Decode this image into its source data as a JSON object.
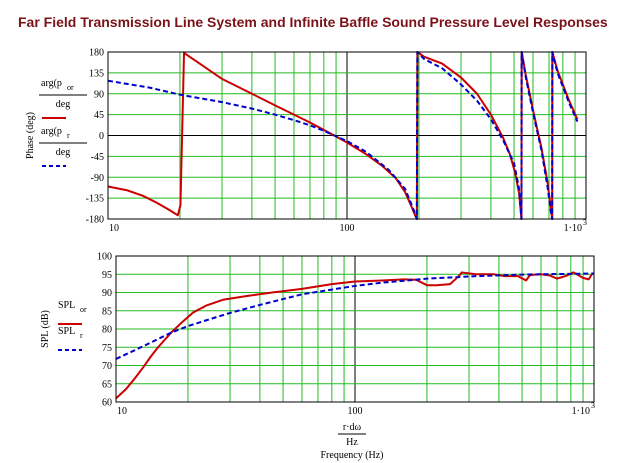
{
  "title": "Far Field Transmission Line System and Infinite Baffle Sound Pressure Level Responses",
  "chart_data": [
    {
      "type": "line",
      "xscale": "log",
      "xlim": [
        10,
        1000
      ],
      "ylim": [
        -180,
        180
      ],
      "grid": true,
      "x_ticks": [
        "10",
        "100",
        "1·10"
      ],
      "x_tick_exp": "3",
      "y_ticks": [
        "180",
        "135",
        "90",
        "45",
        "0",
        "-45",
        "-90",
        "-135",
        "-180"
      ],
      "y_tick_values": [
        180,
        135,
        90,
        45,
        0,
        -45,
        -90,
        -135,
        -180
      ],
      "ylabel": "Phase (deg)",
      "legend": [
        {
          "expr": "arg(p",
          "sub": "or",
          "den": "deg",
          "color": "#cc0000",
          "dash": "solid"
        },
        {
          "expr": "arg(p",
          "sub": "r",
          "den": "deg",
          "color": "#0000cc",
          "dash": "dashed"
        }
      ],
      "series": [
        {
          "color": "#cc0000",
          "dash": "solid",
          "points": [
            [
              10,
              -110
            ],
            [
              12,
              -118
            ],
            [
              14,
              -130
            ],
            [
              16,
              -145
            ],
            [
              18,
              -160
            ],
            [
              19.6,
              -172
            ],
            [
              20.1,
              -150
            ],
            [
              20.8,
              178
            ],
            [
              25,
              150
            ],
            [
              30,
              122
            ],
            [
              40,
              90
            ],
            [
              50,
              65
            ],
            [
              60,
              45
            ],
            [
              70,
              28
            ],
            [
              80,
              12
            ],
            [
              100,
              -15
            ],
            [
              120,
              -40
            ],
            [
              140,
              -65
            ],
            [
              160,
              -92
            ],
            [
              175,
              -122
            ],
            [
              185,
              -150
            ],
            [
              192,
              -170
            ],
            [
              196,
              -180
            ],
            [
              197,
              180
            ],
            [
              210,
              170
            ],
            [
              250,
              155
            ],
            [
              300,
              125
            ],
            [
              350,
              90
            ],
            [
              400,
              45
            ],
            [
              450,
              -5
            ],
            [
              480,
              -40
            ],
            [
              505,
              -80
            ],
            [
              525,
              -125
            ],
            [
              537,
              -180
            ],
            [
              538,
              180
            ],
            [
              560,
              130
            ],
            [
              600,
              55
            ],
            [
              650,
              -25
            ],
            [
              690,
              -100
            ],
            [
              710,
              -150
            ],
            [
              722,
              -180
            ],
            [
              723,
              180
            ],
            [
              760,
              140
            ],
            [
              850,
              75
            ],
            [
              920,
              35
            ]
          ]
        },
        {
          "color": "#0000cc",
          "dash": "dashed",
          "points": [
            [
              10,
              118
            ],
            [
              15,
              103
            ],
            [
              20,
              88
            ],
            [
              30,
              72
            ],
            [
              40,
              58
            ],
            [
              50,
              45
            ],
            [
              60,
              33
            ],
            [
              70,
              22
            ],
            [
              80,
              10
            ],
            [
              100,
              -12
            ],
            [
              120,
              -35
            ],
            [
              150,
              -75
            ],
            [
              175,
              -115
            ],
            [
              190,
              -160
            ],
            [
              196,
              -180
            ],
            [
              197,
              180
            ],
            [
              210,
              165
            ],
            [
              250,
              145
            ],
            [
              300,
              110
            ],
            [
              350,
              75
            ],
            [
              400,
              35
            ],
            [
              450,
              -10
            ],
            [
              500,
              -60
            ],
            [
              525,
              -115
            ],
            [
              537,
              -180
            ],
            [
              538,
              180
            ],
            [
              560,
              125
            ],
            [
              600,
              50
            ],
            [
              650,
              -30
            ],
            [
              690,
              -110
            ],
            [
              713,
              -165
            ],
            [
              722,
              -180
            ],
            [
              723,
              180
            ],
            [
              760,
              135
            ],
            [
              850,
              70
            ],
            [
              920,
              30
            ]
          ]
        }
      ]
    },
    {
      "type": "line",
      "xscale": "log",
      "xlim": [
        10,
        1000
      ],
      "ylim": [
        60,
        100
      ],
      "grid": true,
      "x_ticks": [
        "10",
        "100",
        "1·10"
      ],
      "x_tick_exp": "3",
      "y_ticks": [
        "100",
        "95",
        "90",
        "85",
        "80",
        "75",
        "70",
        "65",
        "60"
      ],
      "y_tick_values": [
        100,
        95,
        90,
        85,
        80,
        75,
        70,
        65,
        60
      ],
      "ylabel": "SPL (dB)",
      "x_expr_num": "r·dω",
      "x_expr_den": "Hz",
      "xlabel": "Frequency (Hz)",
      "legend": [
        {
          "expr": "SPL",
          "sub": "or",
          "color": "#cc0000",
          "dash": "solid"
        },
        {
          "expr": "SPL",
          "sub": "r",
          "color": "#0000cc",
          "dash": "dashed"
        }
      ],
      "series": [
        {
          "color": "#cc0000",
          "dash": "solid",
          "points": [
            [
              10,
              61
            ],
            [
              11,
              63.5
            ],
            [
              12,
              66.5
            ],
            [
              13,
              69.5
            ],
            [
              14,
              72.5
            ],
            [
              15,
              75
            ],
            [
              17,
              79
            ],
            [
              19,
              82
            ],
            [
              21,
              84.5
            ],
            [
              24,
              86.5
            ],
            [
              28,
              88
            ],
            [
              35,
              89
            ],
            [
              45,
              90
            ],
            [
              60,
              91
            ],
            [
              80,
              92.3
            ],
            [
              100,
              93
            ],
            [
              130,
              93.3
            ],
            [
              160,
              93.6
            ],
            [
              180,
              93.5
            ],
            [
              200,
              92
            ],
            [
              220,
              92
            ],
            [
              250,
              92.3
            ],
            [
              270,
              94.3
            ],
            [
              280,
              95.5
            ],
            [
              320,
              95
            ],
            [
              380,
              95
            ],
            [
              420,
              94.5
            ],
            [
              480,
              94.5
            ],
            [
              520,
              93.3
            ],
            [
              540,
              94.8
            ],
            [
              600,
              95
            ],
            [
              650,
              94.7
            ],
            [
              700,
              93.8
            ],
            [
              760,
              94.5
            ],
            [
              820,
              95.5
            ],
            [
              900,
              94
            ],
            [
              950,
              93.6
            ],
            [
              980,
              95
            ]
          ]
        },
        {
          "color": "#0000cc",
          "dash": "dashed",
          "points": [
            [
              10,
              71.8
            ],
            [
              12,
              74.2
            ],
            [
              14,
              76.3
            ],
            [
              17,
              79
            ],
            [
              20,
              80.8
            ],
            [
              25,
              82.8
            ],
            [
              30,
              84.4
            ],
            [
              40,
              86.6
            ],
            [
              50,
              88.2
            ],
            [
              60,
              89.5
            ],
            [
              80,
              90.8
            ],
            [
              100,
              91.8
            ],
            [
              130,
              92.7
            ],
            [
              160,
              93.2
            ],
            [
              200,
              93.8
            ],
            [
              250,
              94.1
            ],
            [
              300,
              94.4
            ],
            [
              400,
              94.7
            ],
            [
              500,
              94.9
            ],
            [
              600,
              95
            ],
            [
              800,
              95.1
            ],
            [
              1000,
              95.2
            ]
          ]
        }
      ]
    }
  ]
}
